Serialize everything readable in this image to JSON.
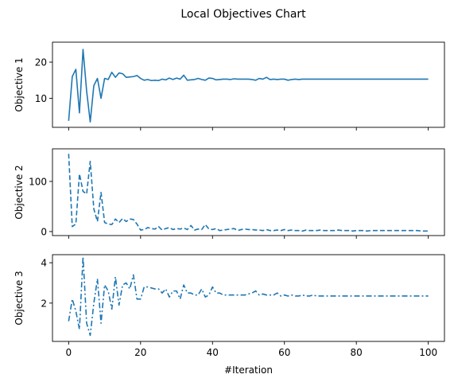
{
  "figure_title": "Local Objectives Chart",
  "colors": {
    "series": "#1f77b4",
    "axes": "#000000",
    "background": "#ffffff"
  },
  "chart_data": [
    {
      "type": "line",
      "ylabel": "Objective 1",
      "xlabel": "",
      "xlim": [
        -4.5,
        104.5
      ],
      "ylim": [
        2.0,
        25.5
      ],
      "xticks": [
        0,
        20,
        40,
        60,
        80,
        100
      ],
      "yticks": [
        10,
        20
      ],
      "linestyle": "solid",
      "show_xticklabels": false,
      "grid": false,
      "x": [
        0,
        1,
        2,
        3,
        4,
        5,
        6,
        7,
        8,
        9,
        10,
        11,
        12,
        13,
        14,
        15,
        16,
        17,
        18,
        19,
        20,
        21,
        22,
        23,
        24,
        25,
        26,
        27,
        28,
        29,
        30,
        31,
        32,
        33,
        34,
        35,
        36,
        37,
        38,
        39,
        40,
        41,
        42,
        43,
        44,
        45,
        46,
        47,
        48,
        49,
        50,
        51,
        52,
        53,
        54,
        55,
        56,
        57,
        58,
        59,
        60,
        61,
        62,
        63,
        64,
        65,
        66,
        67,
        68,
        69,
        70,
        71,
        72,
        73,
        74,
        75,
        76,
        77,
        78,
        79,
        80,
        81,
        82,
        83,
        84,
        85,
        86,
        87,
        88,
        89,
        90,
        91,
        92,
        93,
        94,
        95,
        96,
        97,
        98,
        99,
        100
      ],
      "values": [
        3.8,
        16.0,
        18.0,
        6.0,
        23.5,
        12.0,
        3.5,
        13.5,
        15.5,
        10.0,
        15.5,
        15.2,
        17.2,
        15.8,
        17.0,
        16.8,
        15.8,
        15.9,
        16.0,
        16.3,
        15.5,
        15.0,
        15.2,
        14.9,
        15.0,
        14.9,
        15.3,
        15.1,
        15.6,
        15.2,
        15.6,
        15.3,
        16.4,
        15.0,
        15.1,
        15.2,
        15.5,
        15.2,
        15.0,
        15.6,
        15.5,
        15.1,
        15.2,
        15.3,
        15.3,
        15.2,
        15.4,
        15.3,
        15.3,
        15.3,
        15.3,
        15.2,
        15.0,
        15.5,
        15.3,
        15.8,
        15.2,
        15.3,
        15.2,
        15.3,
        15.3,
        15.0,
        15.2,
        15.3,
        15.2,
        15.3,
        15.3,
        15.3,
        15.3,
        15.3,
        15.3,
        15.3,
        15.3,
        15.3,
        15.3,
        15.3,
        15.3,
        15.3,
        15.3,
        15.3,
        15.3,
        15.3,
        15.3,
        15.3,
        15.3,
        15.3,
        15.3,
        15.3,
        15.3,
        15.3,
        15.3,
        15.3,
        15.3,
        15.3,
        15.3,
        15.3,
        15.3,
        15.3,
        15.3,
        15.3,
        15.3
      ]
    },
    {
      "type": "line",
      "ylabel": "Objective 2",
      "xlabel": "",
      "xlim": [
        -4.5,
        104.5
      ],
      "ylim": [
        -8,
        165
      ],
      "xticks": [
        0,
        20,
        40,
        60,
        80,
        100
      ],
      "yticks": [
        0,
        100
      ],
      "linestyle": "dashed",
      "show_xticklabels": false,
      "grid": false,
      "x": [
        0,
        1,
        2,
        3,
        4,
        5,
        6,
        7,
        8,
        9,
        10,
        11,
        12,
        13,
        14,
        15,
        16,
        17,
        18,
        19,
        20,
        21,
        22,
        23,
        24,
        25,
        26,
        27,
        28,
        29,
        30,
        31,
        32,
        33,
        34,
        35,
        36,
        37,
        38,
        39,
        40,
        41,
        42,
        43,
        44,
        45,
        46,
        47,
        48,
        49,
        50,
        51,
        52,
        53,
        54,
        55,
        56,
        57,
        58,
        59,
        60,
        61,
        62,
        63,
        64,
        65,
        66,
        67,
        68,
        69,
        70,
        71,
        72,
        73,
        74,
        75,
        76,
        77,
        78,
        79,
        80,
        81,
        82,
        83,
        84,
        85,
        86,
        87,
        88,
        89,
        90,
        91,
        92,
        93,
        94,
        95,
        96,
        97,
        98,
        99,
        100
      ],
      "values": [
        155,
        10,
        15,
        115,
        80,
        75,
        140,
        45,
        20,
        78,
        18,
        15,
        14,
        25,
        18,
        26,
        20,
        25,
        24,
        15,
        3,
        4,
        8,
        6,
        5,
        10,
        3,
        6,
        8,
        4,
        6,
        5,
        7,
        4,
        12,
        3,
        5,
        4,
        14,
        5,
        4,
        6,
        2,
        3,
        4,
        5,
        6,
        2,
        4,
        5,
        4,
        4,
        3,
        3,
        2,
        4,
        2,
        2,
        3,
        2,
        4,
        2,
        3,
        2,
        2,
        1,
        3,
        2,
        2,
        2,
        3,
        2,
        2,
        2,
        2,
        3,
        2,
        2,
        2,
        1,
        2,
        2,
        2,
        1,
        2,
        2,
        2,
        2,
        2,
        2,
        2,
        2,
        2,
        2,
        2,
        2,
        2,
        2,
        1,
        1,
        1
      ]
    },
    {
      "type": "line",
      "ylabel": "Objective 3",
      "xlabel": "#Iteration",
      "xlim": [
        -4.5,
        104.5
      ],
      "ylim": [
        0.1,
        4.4
      ],
      "xticks": [
        0,
        20,
        40,
        60,
        80,
        100
      ],
      "xticklabels": [
        "0",
        "20",
        "40",
        "60",
        "80",
        "100"
      ],
      "yticks": [
        2,
        4
      ],
      "linestyle": "dashdot",
      "show_xticklabels": true,
      "grid": false,
      "x": [
        0,
        1,
        2,
        3,
        4,
        5,
        6,
        7,
        8,
        9,
        10,
        11,
        12,
        13,
        14,
        15,
        16,
        17,
        18,
        19,
        20,
        21,
        22,
        23,
        24,
        25,
        26,
        27,
        28,
        29,
        30,
        31,
        32,
        33,
        34,
        35,
        36,
        37,
        38,
        39,
        40,
        41,
        42,
        43,
        44,
        45,
        46,
        47,
        48,
        49,
        50,
        51,
        52,
        53,
        54,
        55,
        56,
        57,
        58,
        59,
        60,
        61,
        62,
        63,
        64,
        65,
        66,
        67,
        68,
        69,
        70,
        71,
        72,
        73,
        74,
        75,
        76,
        77,
        78,
        79,
        80,
        81,
        82,
        83,
        84,
        85,
        86,
        87,
        88,
        89,
        90,
        91,
        92,
        93,
        94,
        95,
        96,
        97,
        98,
        99,
        100
      ],
      "values": [
        1.1,
        2.2,
        1.6,
        0.7,
        4.3,
        1.0,
        0.4,
        2.0,
        3.2,
        1.0,
        2.9,
        2.6,
        1.7,
        3.3,
        1.9,
        2.9,
        3.0,
        2.7,
        3.4,
        2.2,
        2.2,
        2.8,
        2.8,
        2.75,
        2.7,
        2.7,
        2.5,
        2.7,
        2.3,
        2.6,
        2.6,
        2.2,
        2.9,
        2.5,
        2.5,
        2.4,
        2.4,
        2.7,
        2.3,
        2.4,
        2.8,
        2.5,
        2.5,
        2.4,
        2.4,
        2.4,
        2.4,
        2.4,
        2.4,
        2.4,
        2.45,
        2.5,
        2.6,
        2.4,
        2.45,
        2.4,
        2.4,
        2.4,
        2.5,
        2.35,
        2.4,
        2.35,
        2.4,
        2.35,
        2.35,
        2.4,
        2.35,
        2.35,
        2.4,
        2.35,
        2.35,
        2.35,
        2.35,
        2.35,
        2.35,
        2.35,
        2.35,
        2.35,
        2.35,
        2.35,
        2.35,
        2.35,
        2.35,
        2.35,
        2.35,
        2.35,
        2.35,
        2.35,
        2.35,
        2.35,
        2.35,
        2.35,
        2.35,
        2.35,
        2.35,
        2.35,
        2.35,
        2.35,
        2.35,
        2.35,
        2.35
      ]
    }
  ]
}
